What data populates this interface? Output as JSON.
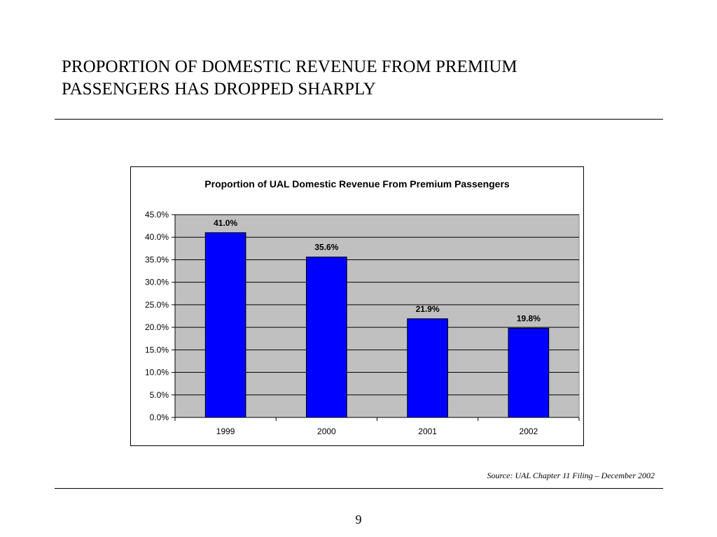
{
  "slide": {
    "title_lines": [
      "PROPORTION OF DOMESTIC REVENUE FROM PREMIUM",
      "PASSENGERS HAS DROPPED SHARPLY"
    ],
    "source": "Source:  UAL Chapter 11  Filing – December 2002",
    "page_number": "9"
  },
  "chart_data": {
    "type": "bar",
    "title": "Proportion of UAL Domestic Revenue From Premium Passengers",
    "categories": [
      "1999",
      "2000",
      "2001",
      "2002"
    ],
    "values": [
      41.0,
      35.6,
      21.9,
      19.8
    ],
    "data_labels": [
      "41.0%",
      "35.6%",
      "21.9%",
      "19.8%"
    ],
    "xlabel": "",
    "ylabel": "",
    "ylim": [
      0,
      45
    ],
    "yticks": [
      0,
      5,
      10,
      15,
      20,
      25,
      30,
      35,
      40,
      45
    ],
    "ytick_labels": [
      "0.0%",
      "5.0%",
      "10.0%",
      "15.0%",
      "20.0%",
      "25.0%",
      "30.0%",
      "35.0%",
      "40.0%",
      "45.0%"
    ],
    "grid": true,
    "legend": "none",
    "colors": {
      "bar_fill": "#0000ff",
      "plot_area": "#c0c0c0",
      "gridline": "#000000"
    }
  }
}
